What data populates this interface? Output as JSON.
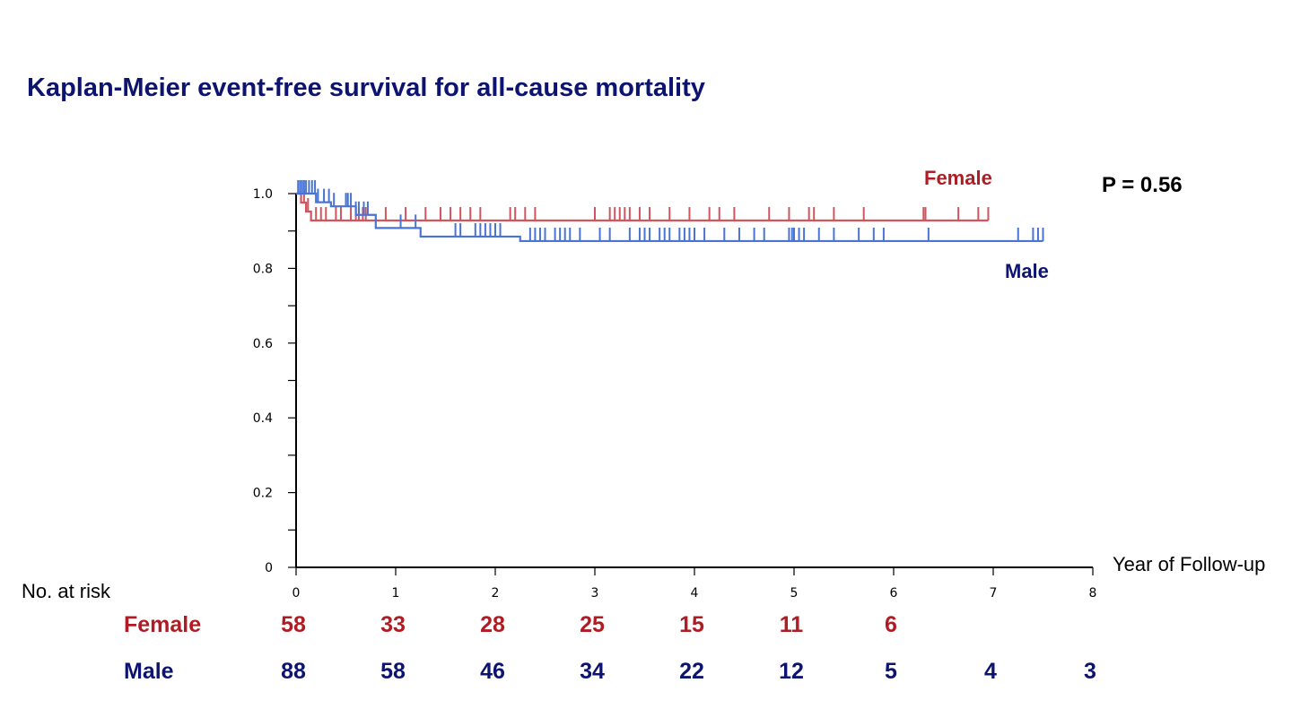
{
  "chart_data": {
    "type": "line",
    "title": "Kaplan-Meier event-free survival for all-cause mortality",
    "xlabel": "Year of Follow-up",
    "ylabel": "",
    "xlim": [
      0,
      8
    ],
    "ylim": [
      0,
      1.0
    ],
    "x_ticks": [
      "0",
      "1",
      "2",
      "3",
      "4",
      "5",
      "6",
      "7",
      "8"
    ],
    "y_ticks": [
      "0",
      "0.2",
      "0.4",
      "0.6",
      "0.8",
      "1.0"
    ],
    "y_tick_values": [
      0,
      0.2,
      0.4,
      0.6,
      0.8,
      1.0
    ],
    "p_value_text": "P = 0.56",
    "series": [
      {
        "name": "Female",
        "color": "#d2555e",
        "label_color": "#b01c24",
        "steps": [
          [
            0,
            1.0
          ],
          [
            0.05,
            0.976
          ],
          [
            0.1,
            0.952
          ],
          [
            0.15,
            0.928
          ],
          [
            6.95,
            0.928
          ]
        ],
        "censors": [
          0.08,
          0.12,
          0.2,
          0.25,
          0.3,
          0.4,
          0.45,
          0.55,
          0.6,
          0.63,
          0.67,
          0.7,
          0.9,
          1.1,
          1.3,
          1.45,
          1.55,
          1.65,
          1.75,
          1.85,
          2.15,
          2.2,
          2.3,
          2.4,
          3.0,
          3.15,
          3.2,
          3.25,
          3.3,
          3.35,
          3.45,
          3.55,
          3.75,
          3.95,
          4.15,
          4.25,
          4.4,
          4.75,
          4.95,
          5.15,
          5.2,
          5.4,
          5.7,
          6.3,
          6.32,
          6.65,
          6.85,
          6.95
        ]
      },
      {
        "name": "Male",
        "color": "#4a74d2",
        "label_color": "#0d1470",
        "steps": [
          [
            0,
            1.0
          ],
          [
            0.2,
            0.977
          ],
          [
            0.35,
            0.966
          ],
          [
            0.6,
            0.943
          ],
          [
            0.8,
            0.92
          ],
          [
            0.8,
            0.908
          ],
          [
            1.25,
            0.908
          ],
          [
            1.25,
            0.897
          ],
          [
            1.25,
            0.885
          ],
          [
            2.25,
            0.885
          ],
          [
            2.25,
            0.873
          ],
          [
            7.5,
            0.873
          ]
        ],
        "censors": [
          0.02,
          0.04,
          0.06,
          0.08,
          0.1,
          0.13,
          0.16,
          0.19,
          0.22,
          0.28,
          0.33,
          0.38,
          0.5,
          0.52,
          0.55,
          0.6,
          0.63,
          0.68,
          0.72,
          1.05,
          1.2,
          1.6,
          1.65,
          1.8,
          1.85,
          1.9,
          1.95,
          2.0,
          2.05,
          2.35,
          2.4,
          2.45,
          2.5,
          2.6,
          2.65,
          2.7,
          2.75,
          2.85,
          3.05,
          3.15,
          3.35,
          3.45,
          3.5,
          3.55,
          3.65,
          3.7,
          3.75,
          3.85,
          3.9,
          3.95,
          4.0,
          4.1,
          4.3,
          4.45,
          4.6,
          4.7,
          4.95,
          4.98,
          5.0,
          5.05,
          5.1,
          5.25,
          5.4,
          5.65,
          5.8,
          5.9,
          6.35,
          7.25,
          7.4,
          7.45,
          7.5
        ]
      }
    ],
    "legend": {
      "female_label": "Female",
      "male_label": "Male",
      "female_position": "top-right",
      "male_position": "right"
    },
    "risk_table": {
      "title": "No. at risk",
      "rows": [
        {
          "label": "Female",
          "color": "#b01c24",
          "values": [
            "58",
            "33",
            "28",
            "25",
            "15",
            "11",
            "6"
          ]
        },
        {
          "label": "Male",
          "color": "#0d1470",
          "values": [
            "88",
            "58",
            "46",
            "34",
            "22",
            "12",
            "5",
            "4",
            "3"
          ]
        }
      ]
    }
  }
}
